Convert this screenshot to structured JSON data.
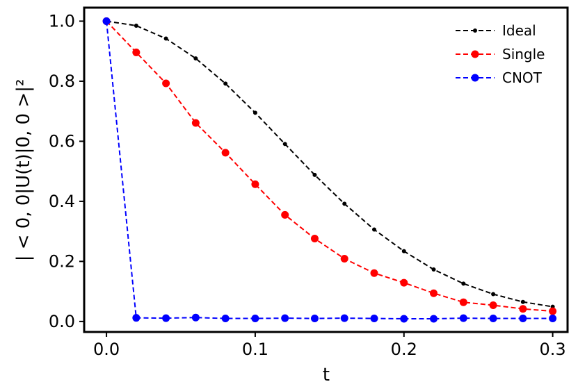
{
  "chart_data": {
    "type": "line",
    "title": "",
    "xlabel": "t",
    "ylabel": "| < 0, 0|U(t)|0, 0 >|²",
    "xlim": [
      -0.015,
      0.31
    ],
    "ylim": [
      -0.035,
      1.045
    ],
    "xticks": [
      "0.0",
      "0.1",
      "0.2",
      "0.3"
    ],
    "yticks": [
      "0.0",
      "0.2",
      "0.4",
      "0.6",
      "0.8",
      "1.0"
    ],
    "grid": false,
    "legend": "top-right",
    "x": [
      0.0,
      0.02,
      0.04,
      0.06,
      0.08,
      0.1,
      0.12,
      0.14,
      0.16,
      0.18,
      0.2,
      0.22,
      0.24,
      0.26,
      0.28,
      0.3
    ],
    "series": [
      {
        "name": "Ideal",
        "color": "#000000",
        "marker": "small-dot",
        "values": [
          1.0,
          0.985,
          0.942,
          0.876,
          0.792,
          0.695,
          0.591,
          0.488,
          0.392,
          0.306,
          0.234,
          0.173,
          0.126,
          0.091,
          0.065,
          0.049
        ]
      },
      {
        "name": "Single",
        "color": "#ff0000",
        "marker": "dot",
        "values": [
          1.0,
          0.896,
          0.793,
          0.661,
          0.562,
          0.457,
          0.355,
          0.276,
          0.209,
          0.161,
          0.129,
          0.094,
          0.064,
          0.054,
          0.042,
          0.034
        ]
      },
      {
        "name": "CNOT",
        "color": "#0000ff",
        "marker": "dot",
        "values": [
          1.0,
          0.012,
          0.011,
          0.013,
          0.01,
          0.01,
          0.011,
          0.01,
          0.011,
          0.01,
          0.009,
          0.009,
          0.011,
          0.01,
          0.01,
          0.01
        ]
      }
    ]
  }
}
